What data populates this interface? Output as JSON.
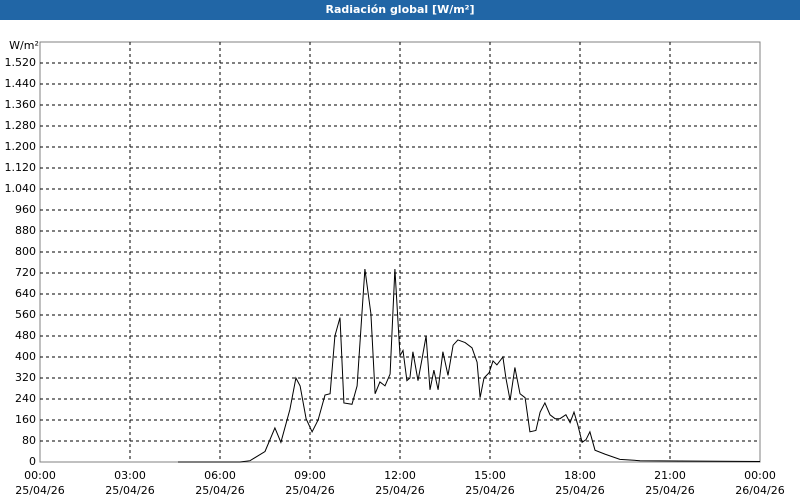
{
  "chart_data": {
    "type": "line",
    "title": "Radiación global [W/m²]",
    "y_unit": "W/m²",
    "x": [
      4.6,
      6.67,
      7,
      7.5,
      7.83,
      8.03,
      8.33,
      8.53,
      8.67,
      8.87,
      9.07,
      9.27,
      9.5,
      9.67,
      9.83,
      10,
      10.13,
      10.4,
      10.57,
      10.83,
      11.03,
      11.17,
      11.33,
      11.5,
      11.67,
      11.83,
      12,
      12.1,
      12.23,
      12.33,
      12.43,
      12.6,
      12.73,
      12.87,
      13,
      13.13,
      13.27,
      13.43,
      13.6,
      13.77,
      13.93,
      14.17,
      14.4,
      14.57,
      14.67,
      14.8,
      14.97,
      15.1,
      15.23,
      15.43,
      15.53,
      15.67,
      15.83,
      16,
      16.17,
      16.33,
      16.53,
      16.67,
      16.83,
      17,
      17.17,
      17.33,
      17.53,
      17.67,
      17.8,
      17.93,
      18.07,
      18.2,
      18.33,
      18.5,
      18.83,
      19.33,
      20,
      24
    ],
    "values": [
      0,
      0,
      5,
      40,
      130,
      75,
      200,
      320,
      290,
      165,
      115,
      160,
      255,
      260,
      480,
      550,
      225,
      220,
      290,
      735,
      565,
      260,
      305,
      290,
      335,
      735,
      405,
      425,
      310,
      320,
      420,
      310,
      390,
      480,
      275,
      350,
      275,
      420,
      330,
      445,
      465,
      455,
      435,
      380,
      245,
      320,
      340,
      385,
      370,
      400,
      320,
      235,
      360,
      260,
      245,
      115,
      120,
      190,
      225,
      180,
      165,
      165,
      180,
      150,
      190,
      140,
      75,
      85,
      115,
      45,
      30,
      10,
      5,
      2
    ],
    "color": "#000000",
    "xlim": [
      0,
      24
    ],
    "xticks": [
      {
        "value": 0,
        "label": "00:00"
      },
      {
        "value": 3,
        "label": "03:00"
      },
      {
        "value": 6,
        "label": "06:00"
      },
      {
        "value": 9,
        "label": "09:00"
      },
      {
        "value": 12,
        "label": "12:00"
      },
      {
        "value": 15,
        "label": "15:00"
      },
      {
        "value": 18,
        "label": "18:00"
      },
      {
        "value": 21,
        "label": "21:00"
      },
      {
        "value": 24,
        "label": "00:00"
      }
    ],
    "xtick_dates": [
      "25/04/26",
      "25/04/26",
      "25/04/26",
      "25/04/26",
      "25/04/26",
      "25/04/26",
      "25/04/26",
      "25/04/26",
      "26/04/26"
    ],
    "ylim": [
      0,
      1600
    ],
    "yticks": [
      0,
      80,
      160,
      240,
      320,
      400,
      480,
      560,
      640,
      720,
      800,
      880,
      960,
      {
        "value": 1040,
        "label": "1.040"
      },
      {
        "value": 1120,
        "label": "1.120"
      },
      {
        "value": 1200,
        "label": "1.200"
      },
      {
        "value": 1280,
        "label": "1.280"
      },
      {
        "value": 1360,
        "label": "1.360"
      },
      {
        "value": 1440,
        "label": "1.440"
      },
      {
        "value": 1520,
        "label": "1.520"
      }
    ],
    "grid": true
  }
}
